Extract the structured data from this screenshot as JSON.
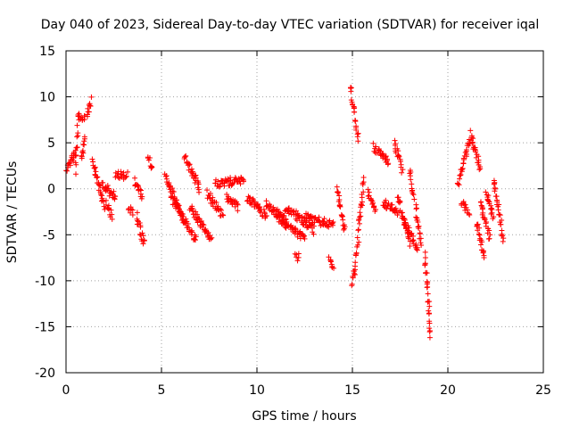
{
  "chart_data": {
    "type": "scatter",
    "title": "Day 040 of 2023, Sidereal Day-to-day VTEC variation (SDTVAR) for receiver iqal",
    "xlabel": "GPS time / hours",
    "ylabel": "SDTVAR / TECUs",
    "xlim": [
      0,
      25
    ],
    "ylim": [
      -20,
      15
    ],
    "xticks": [
      0,
      5,
      10,
      15,
      20,
      25
    ],
    "yticks": [
      -20,
      -15,
      -10,
      -5,
      0,
      5,
      10,
      15
    ],
    "grid": true,
    "marker": "+",
    "color": "#ff0000",
    "series": [
      {
        "name": "SDTVAR",
        "segments": [
          {
            "x": [
              0.0,
              0.5
            ],
            "y": [
              2.0,
              4.0
            ]
          },
          {
            "x": [
              0.5,
              0.6
            ],
            "y": [
              2.0,
              6.5
            ]
          },
          {
            "x": [
              0.6,
              1.0
            ],
            "y": [
              8.0,
              7.5
            ]
          },
          {
            "x": [
              0.8,
              1.0
            ],
            "y": [
              3.0,
              5.5
            ]
          },
          {
            "x": [
              1.1,
              1.3
            ],
            "y": [
              8.0,
              9.8
            ]
          },
          {
            "x": [
              1.4,
              2.0
            ],
            "y": [
              3.0,
              -2.0
            ]
          },
          {
            "x": [
              1.9,
              2.6
            ],
            "y": [
              0.5,
              -1.0
            ]
          },
          {
            "x": [
              2.1,
              2.4
            ],
            "y": [
              -1.5,
              -3.0
            ]
          },
          {
            "x": [
              2.6,
              3.2
            ],
            "y": [
              1.5,
              1.5
            ]
          },
          {
            "x": [
              3.3,
              3.5
            ],
            "y": [
              -2.0,
              -2.5
            ]
          },
          {
            "x": [
              3.6,
              4.0
            ],
            "y": [
              1.0,
              -1.0
            ]
          },
          {
            "x": [
              3.7,
              4.1
            ],
            "y": [
              -3.0,
              -6.0
            ]
          },
          {
            "x": [
              4.3,
              4.5
            ],
            "y": [
              3.5,
              2.0
            ]
          },
          {
            "x": [
              5.2,
              6.2
            ],
            "y": [
              1.5,
              -3.5
            ]
          },
          {
            "x": [
              5.5,
              6.8
            ],
            "y": [
              -1.0,
              -5.5
            ]
          },
          {
            "x": [
              6.2,
              7.0
            ],
            "y": [
              3.5,
              0.0
            ]
          },
          {
            "x": [
              6.5,
              7.6
            ],
            "y": [
              -2.0,
              -5.5
            ]
          },
          {
            "x": [
              7.4,
              8.2
            ],
            "y": [
              -0.5,
              -3.0
            ]
          },
          {
            "x": [
              7.8,
              9.3
            ],
            "y": [
              0.5,
              1.0
            ]
          },
          {
            "x": [
              8.4,
              9.0
            ],
            "y": [
              -1.0,
              -2.0
            ]
          },
          {
            "x": [
              9.5,
              10.5
            ],
            "y": [
              -1.0,
              -3.0
            ]
          },
          {
            "x": [
              10.5,
              11.5
            ],
            "y": [
              -1.5,
              -4.0
            ]
          },
          {
            "x": [
              11.0,
              12.5
            ],
            "y": [
              -2.5,
              -5.5
            ]
          },
          {
            "x": [
              11.5,
              13.0
            ],
            "y": [
              -2.0,
              -4.5
            ]
          },
          {
            "x": [
              12.0,
              12.2
            ],
            "y": [
              -7.5,
              -7.5
            ]
          },
          {
            "x": [
              12.5,
              14.0
            ],
            "y": [
              -3.0,
              -4.0
            ]
          },
          {
            "x": [
              13.8,
              14.0
            ],
            "y": [
              -7.5,
              -8.5
            ]
          },
          {
            "x": [
              14.2,
              14.6
            ],
            "y": [
              0.0,
              -4.5
            ]
          },
          {
            "x": [
              14.9,
              15.3
            ],
            "y": [
              11.0,
              5.5
            ]
          },
          {
            "x": [
              15.0,
              15.3
            ],
            "y": [
              -10.5,
              -6.0
            ]
          },
          {
            "x": [
              15.3,
              15.6
            ],
            "y": [
              -5.0,
              1.0
            ]
          },
          {
            "x": [
              15.8,
              16.2
            ],
            "y": [
              -0.5,
              -2.5
            ]
          },
          {
            "x": [
              16.1,
              16.9
            ],
            "y": [
              4.5,
              3.0
            ]
          },
          {
            "x": [
              16.6,
              17.4
            ],
            "y": [
              -1.5,
              -2.5
            ]
          },
          {
            "x": [
              17.2,
              17.6
            ],
            "y": [
              5.0,
              2.0
            ]
          },
          {
            "x": [
              17.4,
              18.0
            ],
            "y": [
              -1.0,
              -6.0
            ]
          },
          {
            "x": [
              17.7,
              18.4
            ],
            "y": [
              -3.5,
              -6.5
            ]
          },
          {
            "x": [
              18.0,
              18.2
            ],
            "y": [
              2.0,
              -1.0
            ]
          },
          {
            "x": [
              18.3,
              18.6
            ],
            "y": [
              -2.0,
              -6.0
            ]
          },
          {
            "x": [
              18.8,
              19.1
            ],
            "y": [
              -7.0,
              -16.0
            ]
          },
          {
            "x": [
              20.5,
              21.2
            ],
            "y": [
              0.5,
              5.5
            ]
          },
          {
            "x": [
              20.7,
              21.1
            ],
            "y": [
              -1.5,
              -2.5
            ]
          },
          {
            "x": [
              21.2,
              21.7
            ],
            "y": [
              6.0,
              2.0
            ]
          },
          {
            "x": [
              21.5,
              21.9
            ],
            "y": [
              -3.5,
              -7.5
            ]
          },
          {
            "x": [
              21.7,
              22.2
            ],
            "y": [
              -1.5,
              -5.5
            ]
          },
          {
            "x": [
              22.0,
              22.4
            ],
            "y": [
              -0.5,
              -3.0
            ]
          },
          {
            "x": [
              22.4,
              22.9
            ],
            "y": [
              1.0,
              -5.5
            ]
          }
        ]
      }
    ]
  }
}
